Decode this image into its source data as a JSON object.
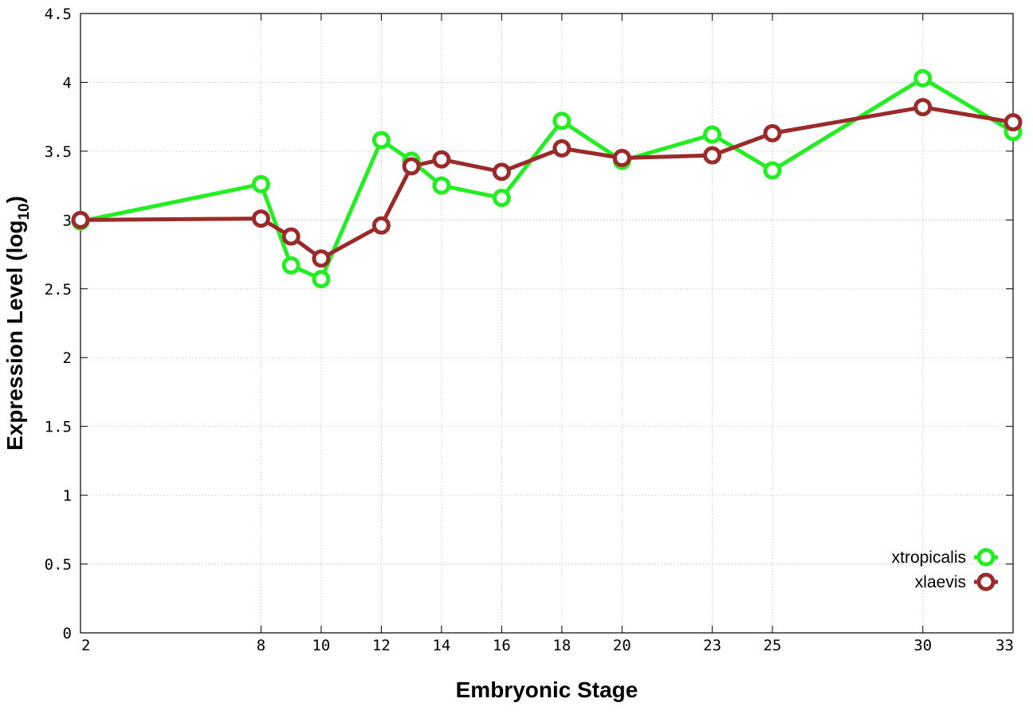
{
  "chart_data": {
    "type": "line",
    "xlabel": "Embryonic Stage",
    "ylabel": {
      "text": "Expression Level (log",
      "subscript": "10",
      "suffix": ")"
    },
    "x_ticks": [
      2,
      8,
      10,
      12,
      14,
      16,
      18,
      20,
      23,
      25,
      30,
      33
    ],
    "y_ticks": [
      "0",
      "0.5",
      "1",
      "1.5",
      "2",
      "2.5",
      "3",
      "3.5",
      "4",
      "4.5"
    ],
    "ylim": [
      0,
      4.5
    ],
    "xlim": [
      2,
      33
    ],
    "grid": true,
    "legend_position": "bottom-right",
    "series": [
      {
        "name": "xtropicalis",
        "color": "#22ee22",
        "points": [
          [
            2,
            2.99
          ],
          [
            8,
            3.26
          ],
          [
            9,
            2.67
          ],
          [
            10,
            2.57
          ],
          [
            12,
            3.58
          ],
          [
            13,
            3.43
          ],
          [
            14,
            3.25
          ],
          [
            16,
            3.16
          ],
          [
            18,
            3.72
          ],
          [
            20,
            3.43
          ],
          [
            23,
            3.62
          ],
          [
            25,
            3.36
          ],
          [
            30,
            4.03
          ],
          [
            33,
            3.64
          ]
        ]
      },
      {
        "name": "xlaevis",
        "color": "#9b2a2a",
        "points": [
          [
            2,
            3.0
          ],
          [
            8,
            3.01
          ],
          [
            9,
            2.88
          ],
          [
            10,
            2.72
          ],
          [
            12,
            2.96
          ],
          [
            13,
            3.39
          ],
          [
            14,
            3.44
          ],
          [
            16,
            3.35
          ],
          [
            18,
            3.52
          ],
          [
            20,
            3.45
          ],
          [
            23,
            3.47
          ],
          [
            25,
            3.63
          ],
          [
            30,
            3.82
          ],
          [
            33,
            3.71
          ]
        ]
      }
    ]
  }
}
